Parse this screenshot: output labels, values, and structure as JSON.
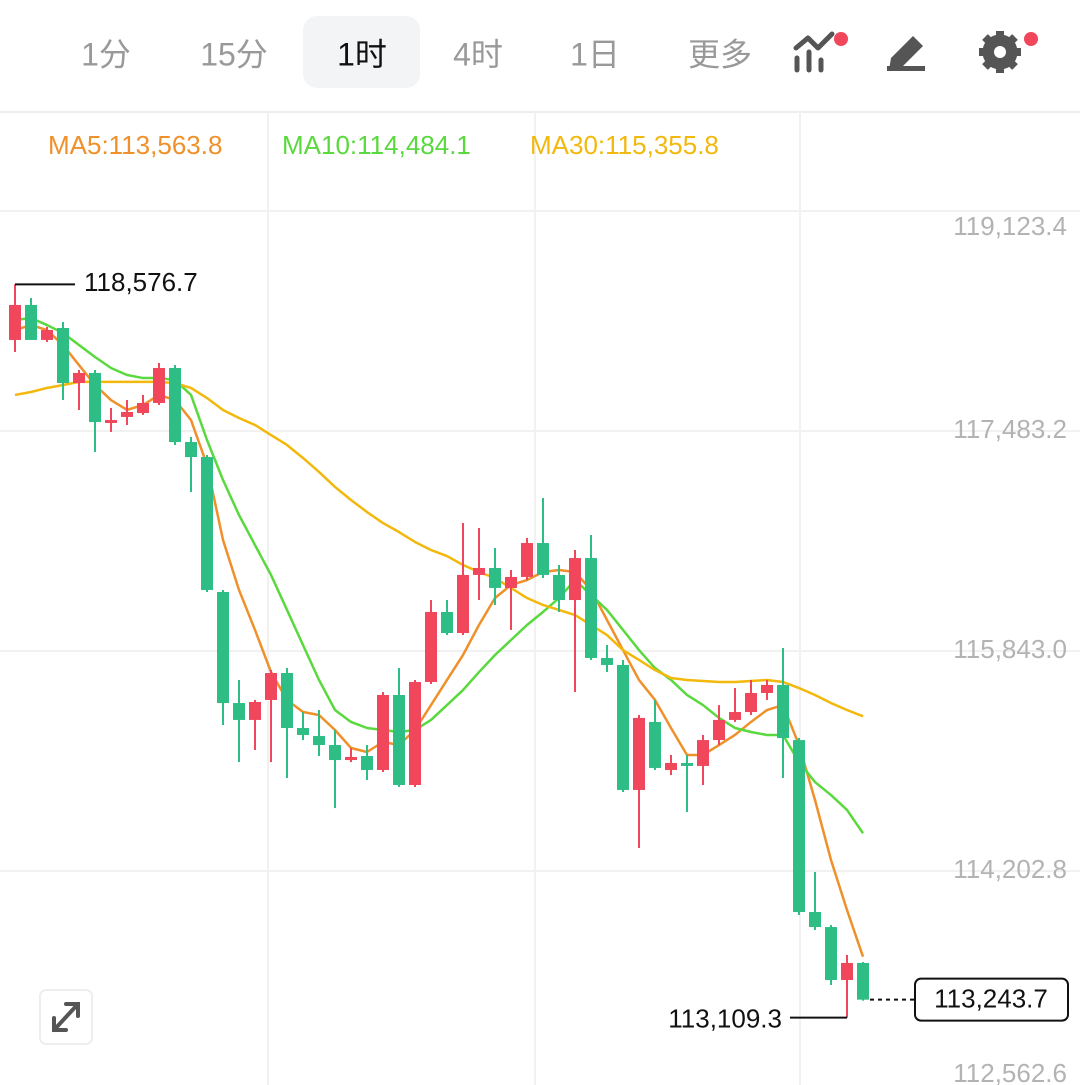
{
  "tabs": [
    "1分",
    "15分",
    "1时",
    "4时",
    "1日",
    "更多"
  ],
  "selected_tab": 2,
  "chart_data": {
    "type": "candlestick",
    "up_color": "#f0475c",
    "down_color": "#2ebd85",
    "open": [
      118162,
      118423,
      118162,
      118251,
      117841,
      117916,
      117543,
      117588,
      117617,
      117692,
      117953,
      117401,
      117289,
      116283,
      115455,
      115329,
      115478,
      115679,
      115269,
      115209,
      115142,
      115030,
      115060,
      114956,
      115515,
      114844,
      115612,
      116134,
      115977,
      116410,
      116462,
      116313,
      116395,
      116648,
      116410,
      116223,
      116536,
      115791,
      115739,
      114807,
      115314,
      114956,
      115008,
      114986,
      115179,
      115329,
      115388,
      115530,
      115590,
      115179,
      113897,
      113785,
      113390,
      113517
    ],
    "close": [
      118423,
      118162,
      118236,
      117841,
      117916,
      117550,
      117565,
      117625,
      117692,
      117953,
      117401,
      117289,
      116298,
      115455,
      115329,
      115463,
      115679,
      115269,
      115217,
      115142,
      115030,
      115053,
      114956,
      115515,
      114844,
      115612,
      116134,
      115977,
      116410,
      116462,
      116313,
      116395,
      116648,
      116410,
      116223,
      116536,
      115791,
      115739,
      114807,
      115344,
      114971,
      115008,
      114986,
      115179,
      115329,
      115388,
      115530,
      115590,
      115194,
      113897,
      113785,
      113390,
      113517,
      113243.7
    ],
    "high": [
      118576.7,
      118475,
      118259,
      118296,
      117938,
      117938,
      117655,
      117714,
      117752,
      117990,
      117975,
      117439,
      117304,
      116298,
      115627,
      115478,
      115701,
      115716,
      115388,
      115403,
      115254,
      115120,
      115142,
      115537,
      115716,
      115627,
      116223,
      116223,
      116797,
      116760,
      116611,
      116447,
      116686,
      116984,
      116484,
      116596,
      116708,
      115888,
      115776,
      115366,
      115478,
      115068,
      115068,
      115217,
      115440,
      115567,
      115627,
      115627,
      115865,
      115194,
      114195,
      113800,
      113577,
      113524
    ],
    "low": [
      118072,
      118162,
      118147,
      117714,
      117640,
      117327,
      117476,
      117528,
      117603,
      117677,
      117379,
      117028,
      116283,
      115291,
      115015,
      115105,
      115015,
      114896,
      115179,
      115060,
      114672,
      115015,
      114881,
      114941,
      114829,
      114829,
      115597,
      115962,
      115962,
      116223,
      116186,
      116000,
      116372,
      116387,
      116134,
      115537,
      115776,
      115686,
      114792,
      114374,
      114956,
      114918,
      114643,
      114844,
      115142,
      115314,
      115366,
      115478,
      114896,
      113875,
      113763,
      113353,
      113109.3,
      113236
    ],
    "series": [
      {
        "name": "MA5:113,563.8",
        "color": "#f0902a",
        "values": [
          118236,
          118273,
          118236,
          118124,
          117975,
          117826,
          117714,
          117640,
          117677,
          117752,
          117714,
          117565,
          117230,
          116671,
          116298,
          116000,
          115686,
          115478,
          115388,
          115366,
          115254,
          115120,
          115090,
          115165,
          115142,
          115254,
          115440,
          115627,
          115813,
          116037,
          116238,
          116335,
          116372,
          116432,
          116447,
          116432,
          116298,
          116074,
          115850,
          115627,
          115478,
          115269,
          115068,
          115068,
          115142,
          115217,
          115314,
          115403,
          115440,
          115142,
          114732,
          114285,
          113912,
          113563.8
        ]
      },
      {
        "name": "MA10:114,484.1",
        "color": "#5ad93e",
        "values": [
          118311,
          118326,
          118273,
          118214,
          118124,
          118035,
          117953,
          117901,
          117878,
          117878,
          117863,
          117752,
          117416,
          117118,
          116857,
          116633,
          116410,
          116149,
          115888,
          115627,
          115403,
          115314,
          115269,
          115254,
          115239,
          115254,
          115329,
          115440,
          115552,
          115686,
          115813,
          115925,
          116037,
          116134,
          116238,
          116372,
          116261,
          116149,
          116000,
          115850,
          115716,
          115627,
          115515,
          115440,
          115344,
          115269,
          115239,
          115217,
          115217,
          115015,
          114866,
          114769,
          114658,
          114484.1
        ]
      },
      {
        "name": "MA30:115,355.8",
        "color": "#f2b80c",
        "values": [
          117752,
          117774,
          117804,
          117826,
          117849,
          117849,
          117849,
          117849,
          117849,
          117849,
          117841,
          117804,
          117729,
          117640,
          117580,
          117528,
          117453,
          117379,
          117282,
          117178,
          117066,
          116969,
          116879,
          116797,
          116730,
          116656,
          116596,
          116551,
          116484,
          116432,
          116387,
          116313,
          116238,
          116186,
          116149,
          116111,
          116037,
          115962,
          115850,
          115776,
          115701,
          115642,
          115627,
          115619,
          115612,
          115612,
          115619,
          115627,
          115612,
          115567,
          115515,
          115455,
          115403,
          115355.8
        ]
      }
    ],
    "ylim": [
      112562.6,
      119123.4
    ],
    "yticks": [
      {
        "value": 119123.4,
        "label": "119,123.4"
      },
      {
        "value": 117483.2,
        "label": "117,483.2"
      },
      {
        "value": 115843.0,
        "label": "115,843.0"
      },
      {
        "value": 114202.8,
        "label": "114,202.8"
      },
      {
        "value": 112562.6,
        "label": "112,562.6"
      }
    ],
    "grid": true,
    "high_label": {
      "value": 118576.7,
      "label": "118,576.7"
    },
    "low_label": {
      "value": 113109.3,
      "label": "113,109.3"
    },
    "last_price": {
      "value": 113243.7,
      "label": "113,243.7"
    }
  }
}
